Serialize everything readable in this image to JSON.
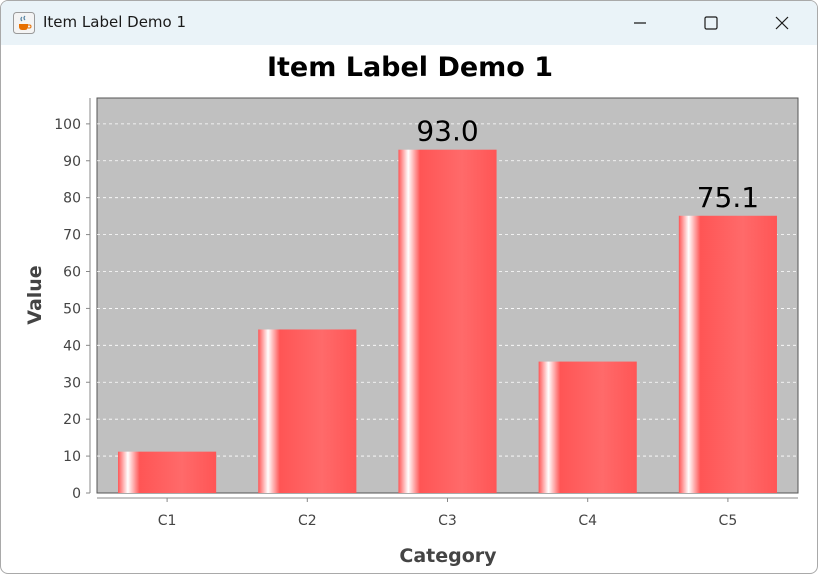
{
  "window": {
    "title": "Item Label Demo 1",
    "app_icon": "java-coffee-icon",
    "controls": {
      "minimize_icon": "minimize-icon",
      "maximize_icon": "maximize-icon",
      "close_icon": "close-icon"
    }
  },
  "chart_data": {
    "type": "bar",
    "title": "Item Label Demo 1",
    "xlabel": "Category",
    "ylabel": "Value",
    "categories": [
      "C1",
      "C2",
      "C3",
      "C4",
      "C5"
    ],
    "values": [
      11.2,
      44.3,
      93.0,
      35.6,
      75.1
    ],
    "item_labels": [
      "",
      "",
      "93.0",
      "",
      "75.1"
    ],
    "ylim": [
      0,
      107
    ],
    "yticks": [
      0,
      10,
      20,
      30,
      40,
      50,
      60,
      70,
      80,
      90,
      100
    ],
    "grid": true,
    "legend": "none",
    "colors": {
      "bar": "#ff5555",
      "bar_highlight": "#ffffff",
      "plot_background": "#c0c0c0",
      "gridline": "#ffffff"
    }
  }
}
